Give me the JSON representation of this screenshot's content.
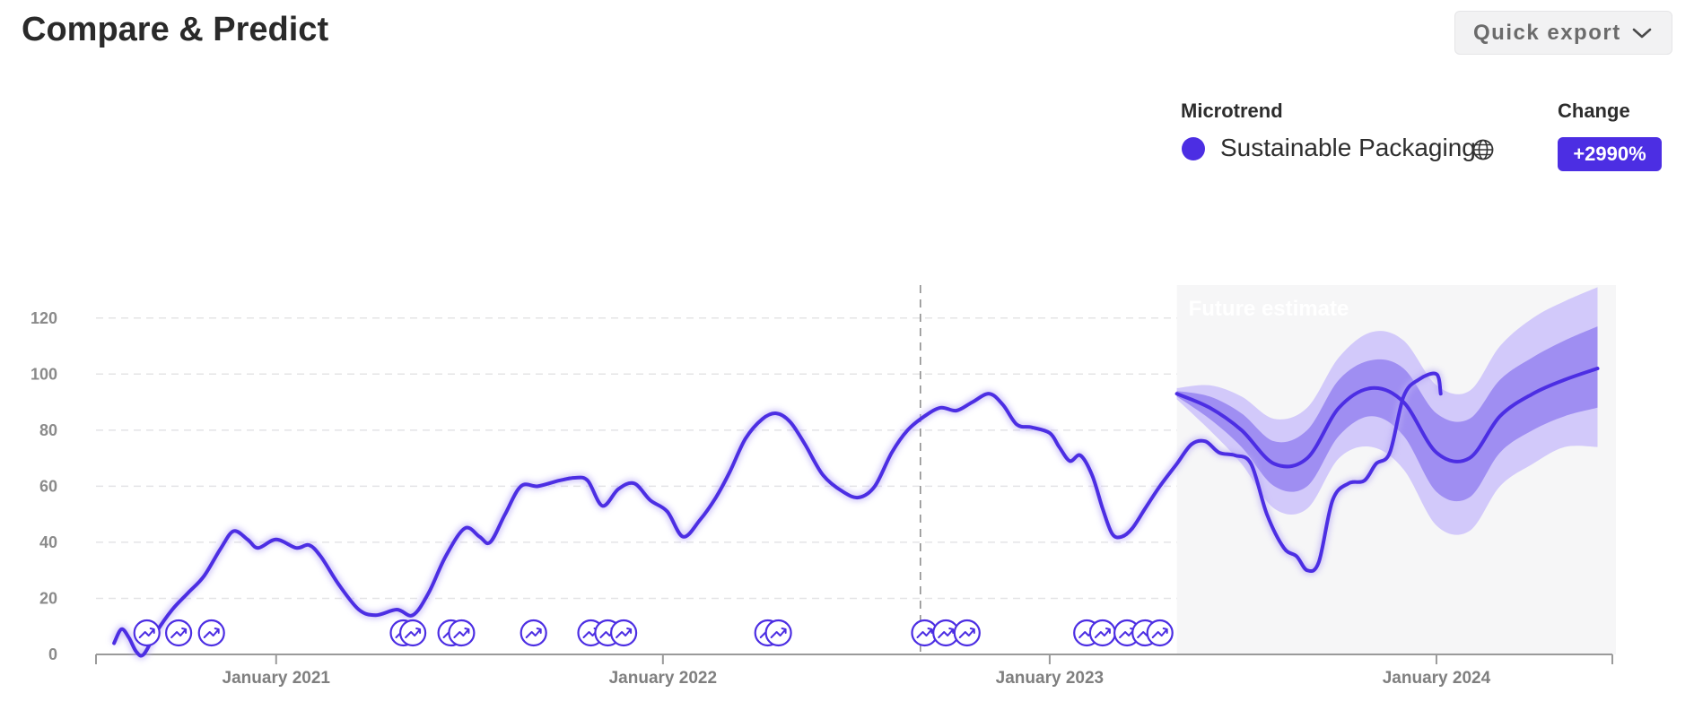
{
  "header": {
    "title": "Compare & Predict",
    "export_label": "Quick export"
  },
  "legend": {
    "microtrend_heading": "Microtrend",
    "change_heading": "Change",
    "series_name": "Sustainable Packaging",
    "change_value": "+2990%",
    "series_color": "#4c2ee3"
  },
  "icons": {
    "export": "chevron-down-icon",
    "globe": "globe-icon",
    "marker": "trend-marker-icon"
  },
  "chart_data": {
    "type": "line",
    "series": [
      {
        "name": "Sustainable Packaging",
        "color": "#4c2ee3"
      }
    ],
    "ylim": [
      0,
      130
    ],
    "y_ticks": [
      0,
      20,
      40,
      60,
      80,
      100,
      120
    ],
    "x_range": [
      "2020-07-15",
      "2024-06-15"
    ],
    "x_ticks": [
      {
        "date": "2021-01-01",
        "label": "January 2021"
      },
      {
        "date": "2022-01-01",
        "label": "January 2022"
      },
      {
        "date": "2023-01-01",
        "label": "January 2023"
      },
      {
        "date": "2024-01-01",
        "label": "January 2024"
      }
    ],
    "grid": true,
    "reference_line_date": "2022-09-01",
    "future_label": "Future estimate",
    "future_start": "2023-05-01",
    "history": [
      [
        "2020-08-01",
        4
      ],
      [
        "2020-08-08",
        9
      ],
      [
        "2020-08-15",
        6
      ],
      [
        "2020-08-22",
        1
      ],
      [
        "2020-08-29",
        0
      ],
      [
        "2020-09-10",
        8
      ],
      [
        "2020-09-25",
        16
      ],
      [
        "2020-10-10",
        22
      ],
      [
        "2020-10-25",
        28
      ],
      [
        "2020-11-10",
        38
      ],
      [
        "2020-11-22",
        44
      ],
      [
        "2020-12-05",
        41
      ],
      [
        "2020-12-15",
        38
      ],
      [
        "2021-01-01",
        41
      ],
      [
        "2021-01-20",
        38
      ],
      [
        "2021-02-01",
        39
      ],
      [
        "2021-02-12",
        35
      ],
      [
        "2021-03-01",
        25
      ],
      [
        "2021-03-20",
        16
      ],
      [
        "2021-04-05",
        14
      ],
      [
        "2021-04-25",
        16
      ],
      [
        "2021-05-10",
        14
      ],
      [
        "2021-05-25",
        22
      ],
      [
        "2021-06-10",
        35
      ],
      [
        "2021-06-28",
        45
      ],
      [
        "2021-07-12",
        42
      ],
      [
        "2021-07-22",
        40
      ],
      [
        "2021-08-05",
        50
      ],
      [
        "2021-08-20",
        60
      ],
      [
        "2021-09-05",
        60
      ],
      [
        "2021-09-25",
        62
      ],
      [
        "2021-10-10",
        63
      ],
      [
        "2021-10-22",
        62
      ],
      [
        "2021-11-05",
        53
      ],
      [
        "2021-11-20",
        59
      ],
      [
        "2021-12-05",
        61
      ],
      [
        "2021-12-20",
        55
      ],
      [
        "2022-01-05",
        51
      ],
      [
        "2022-01-20",
        42
      ],
      [
        "2022-02-05",
        48
      ],
      [
        "2022-02-20",
        56
      ],
      [
        "2022-03-05",
        65
      ],
      [
        "2022-03-20",
        77
      ],
      [
        "2022-04-05",
        84
      ],
      [
        "2022-04-18",
        86
      ],
      [
        "2022-05-01",
        83
      ],
      [
        "2022-05-15",
        75
      ],
      [
        "2022-06-01",
        64
      ],
      [
        "2022-06-20",
        58
      ],
      [
        "2022-07-05",
        56
      ],
      [
        "2022-07-20",
        60
      ],
      [
        "2022-08-05",
        72
      ],
      [
        "2022-08-20",
        80
      ],
      [
        "2022-09-05",
        85
      ],
      [
        "2022-09-20",
        88
      ],
      [
        "2022-10-05",
        87
      ],
      [
        "2022-10-20",
        90
      ],
      [
        "2022-11-05",
        93
      ],
      [
        "2022-11-18",
        89
      ],
      [
        "2022-12-01",
        82
      ],
      [
        "2022-12-15",
        81
      ],
      [
        "2023-01-01",
        79
      ],
      [
        "2023-01-10",
        74
      ],
      [
        "2023-01-20",
        69
      ],
      [
        "2023-01-30",
        71
      ],
      [
        "2023-02-10",
        64
      ],
      [
        "2023-02-20",
        52
      ],
      [
        "2023-03-01",
        43
      ],
      [
        "2023-03-10",
        42
      ],
      [
        "2023-03-20",
        45
      ],
      [
        "2023-04-01",
        52
      ],
      [
        "2023-04-15",
        60
      ],
      [
        "2023-05-01",
        68
      ],
      [
        "2023-05-15",
        75
      ],
      [
        "2023-05-28",
        76
      ],
      [
        "2023-06-10",
        72
      ],
      [
        "2023-06-25",
        71
      ],
      [
        "2023-07-10",
        68
      ],
      [
        "2023-07-25",
        50
      ],
      [
        "2023-08-10",
        38
      ],
      [
        "2023-08-22",
        35
      ],
      [
        "2023-09-01",
        30
      ],
      [
        "2023-09-12",
        33
      ],
      [
        "2023-09-25",
        55
      ],
      [
        "2023-10-10",
        61
      ],
      [
        "2023-10-25",
        62
      ],
      [
        "2023-11-05",
        68
      ],
      [
        "2023-11-18",
        72
      ],
      [
        "2023-12-01",
        92
      ],
      [
        "2023-12-15",
        98
      ],
      [
        "2024-01-01",
        100
      ],
      [
        "2024-01-05",
        93
      ]
    ],
    "forecast": [
      [
        "2023-05-01",
        93,
        92,
        94,
        91,
        95
      ],
      [
        "2023-06-01",
        88,
        84,
        92,
        80,
        96
      ],
      [
        "2023-07-01",
        80,
        74,
        86,
        68,
        92
      ],
      [
        "2023-08-01",
        68,
        60,
        76,
        52,
        84
      ],
      [
        "2023-09-01",
        70,
        60,
        80,
        52,
        88
      ],
      [
        "2023-10-01",
        88,
        78,
        98,
        70,
        106
      ],
      [
        "2023-11-01",
        95,
        85,
        105,
        74,
        115
      ],
      [
        "2023-12-01",
        90,
        78,
        102,
        66,
        112
      ],
      [
        "2024-01-01",
        72,
        58,
        86,
        46,
        96
      ],
      [
        "2024-02-01",
        70,
        56,
        84,
        44,
        94
      ],
      [
        "2024-03-01",
        85,
        72,
        98,
        60,
        110
      ],
      [
        "2024-04-01",
        93,
        80,
        106,
        68,
        120
      ],
      [
        "2024-05-01",
        98,
        85,
        112,
        74,
        126
      ],
      [
        "2024-06-01",
        102,
        88,
        117,
        74,
        131
      ]
    ],
    "trend_markers": [
      "2020-09-01",
      "2020-10-01",
      "2020-11-01",
      "2021-05-01",
      "2021-05-10",
      "2021-06-15",
      "2021-06-25",
      "2021-09-01",
      "2021-10-25",
      "2021-11-10",
      "2021-11-25",
      "2022-04-10",
      "2022-04-20",
      "2022-09-05",
      "2022-09-25",
      "2022-10-15",
      "2023-02-05",
      "2023-02-20",
      "2023-03-15",
      "2023-04-01",
      "2023-04-15"
    ]
  }
}
